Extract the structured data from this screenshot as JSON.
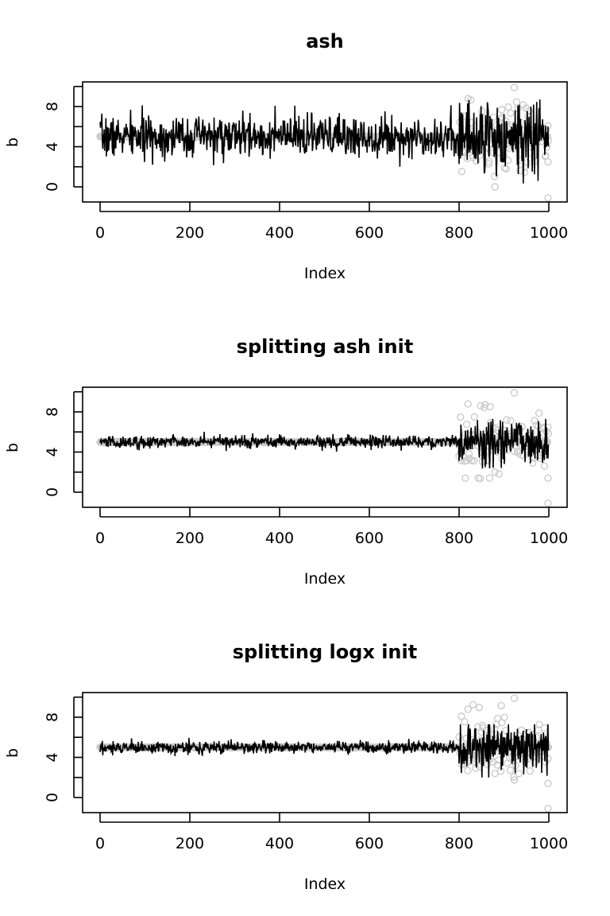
{
  "chart_data": [
    {
      "type": "scatter",
      "title": "ash",
      "xlabel": "Index",
      "ylabel": "b",
      "xlim": [
        -40,
        1040
      ],
      "ylim": [
        -1.5,
        10.2
      ],
      "x_ticks": [
        "0",
        "200",
        "400",
        "600",
        "800",
        "1000"
      ],
      "y_ticks": [
        "0",
        "4",
        "8"
      ],
      "series": [
        {
          "style": "points",
          "color": "#cccccc",
          "n": 1000,
          "baseline": 5,
          "outlier_region_start": 800,
          "notable_points": [
            [
              820,
              8.8
            ],
            [
              923,
              9.9
            ],
            [
              880,
              0.0
            ],
            [
              998,
              -1.1
            ],
            [
              998,
              2.5
            ]
          ]
        },
        {
          "style": "line",
          "color": "#000000",
          "n": 1000,
          "center": 5,
          "spread_before_800": 1.0,
          "spread_after_800": 1.8,
          "min_visible": 0.0,
          "max_visible": 8.9
        }
      ]
    },
    {
      "type": "scatter",
      "title": "splitting ash init",
      "xlabel": "Index",
      "ylabel": "b",
      "xlim": [
        -40,
        1040
      ],
      "ylim": [
        -1.5,
        10.2
      ],
      "x_ticks": [
        "0",
        "200",
        "400",
        "600",
        "800",
        "1000"
      ],
      "y_ticks": [
        "0",
        "4",
        "8"
      ],
      "series": [
        {
          "style": "points",
          "color": "#cccccc",
          "n": 1000,
          "baseline": 5,
          "outlier_region_start": 800,
          "notable_points": [
            [
              820,
              8.8
            ],
            [
              923,
              9.9
            ],
            [
              880,
              2.0
            ],
            [
              998,
              -1.1
            ],
            [
              998,
              1.4
            ]
          ]
        },
        {
          "style": "line",
          "color": "#000000",
          "n": 1000,
          "center": 5,
          "spread_before_800": 0.3,
          "spread_after_800": 1.2,
          "min_visible": 2.0,
          "max_visible": 7.3
        }
      ]
    },
    {
      "type": "scatter",
      "title": "splitting logx init",
      "xlabel": "Index",
      "ylabel": "b",
      "xlim": [
        -40,
        1040
      ],
      "ylim": [
        -1.5,
        10.2
      ],
      "x_ticks": [
        "0",
        "200",
        "400",
        "600",
        "800",
        "1000"
      ],
      "y_ticks": [
        "0",
        "4",
        "8"
      ],
      "series": [
        {
          "style": "points",
          "color": "#cccccc",
          "n": 1000,
          "baseline": 5,
          "outlier_region_start": 800,
          "notable_points": [
            [
              820,
              8.8
            ],
            [
              923,
              9.9
            ],
            [
              880,
              2.4
            ],
            [
              998,
              -1.1
            ],
            [
              998,
              1.4
            ]
          ]
        },
        {
          "style": "line",
          "color": "#000000",
          "n": 1000,
          "center": 5,
          "spread_before_800": 0.3,
          "spread_after_800": 1.2,
          "min_visible": 2.0,
          "max_visible": 7.3
        }
      ]
    }
  ]
}
